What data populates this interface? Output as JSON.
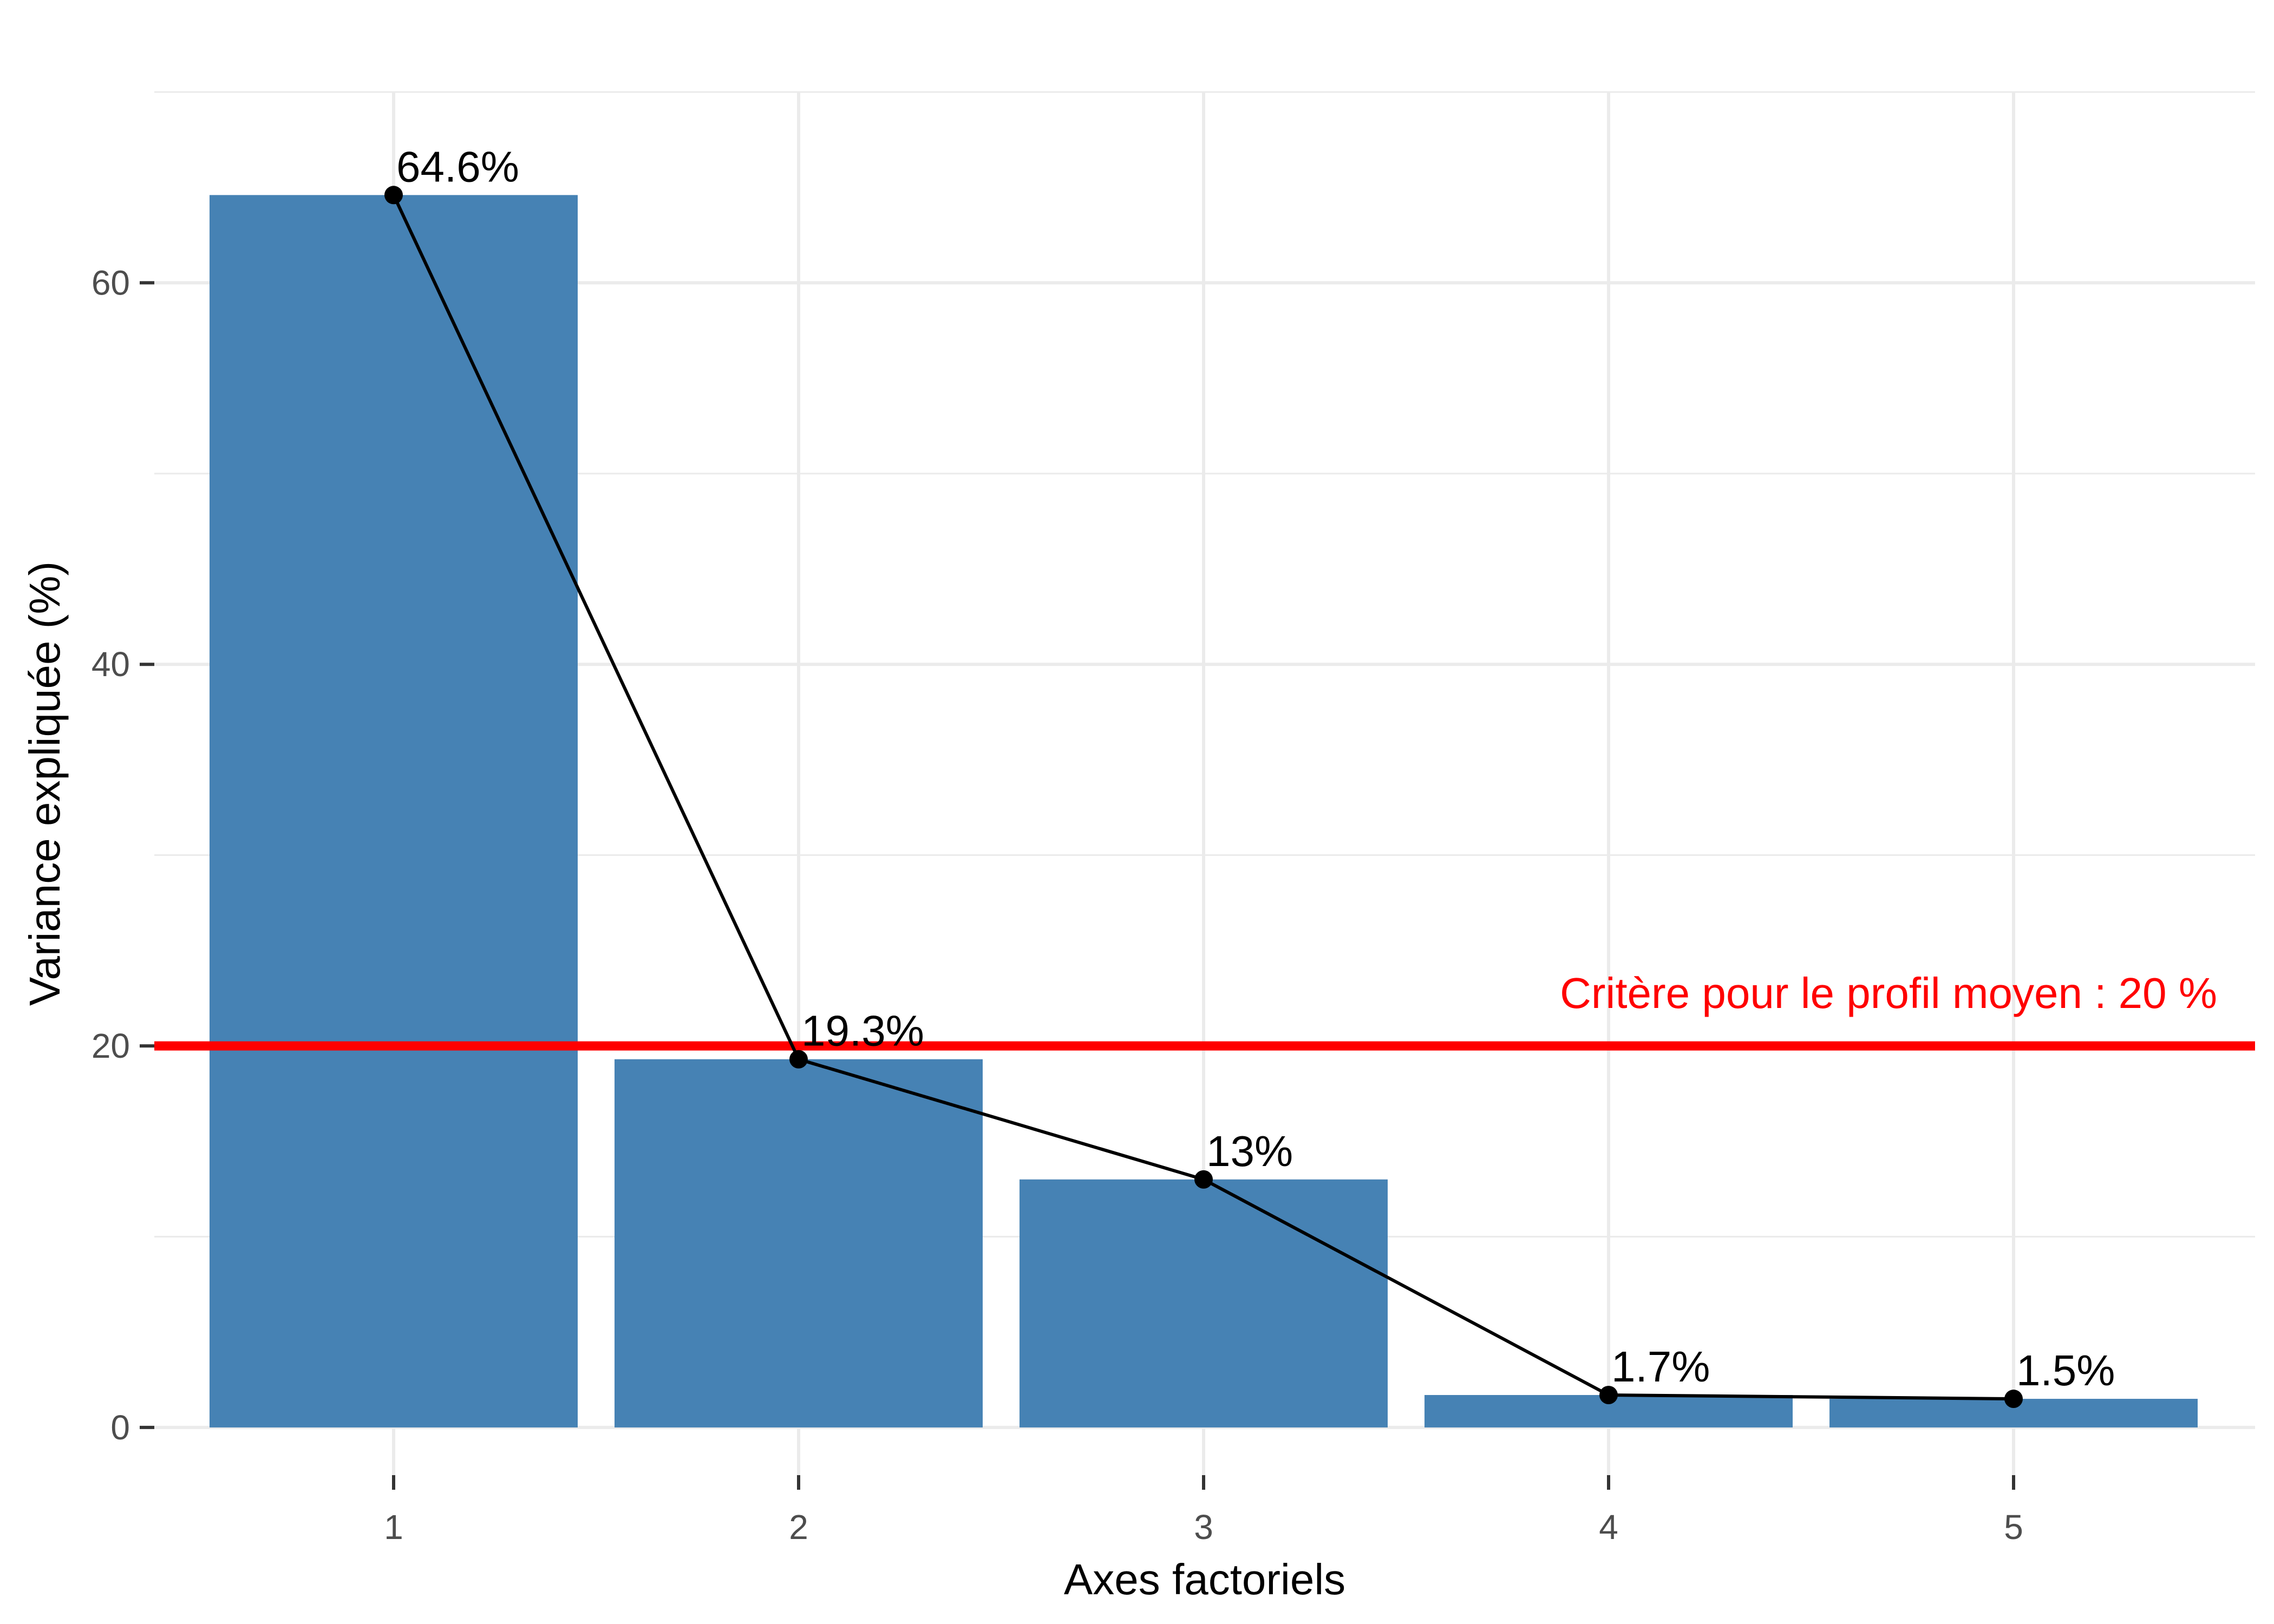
{
  "chart_data": {
    "type": "bar",
    "categories": [
      "1",
      "2",
      "3",
      "4",
      "5"
    ],
    "values": [
      64.6,
      19.3,
      13.0,
      1.7,
      1.5
    ],
    "data_labels": [
      "64.6%",
      "19.3%",
      "13%",
      "1.7%",
      "1.5%"
    ],
    "overlay_line": true,
    "xlabel": "Axes factoriels",
    "ylabel": "Variance expliquée (%)",
    "ylim": [
      -2.5,
      70
    ],
    "yticks": [
      0,
      20,
      40,
      60
    ],
    "yticks_minor": [
      10,
      30,
      50,
      70
    ],
    "grid": true,
    "bar_color": "#4682B4",
    "line_color": "#000000",
    "reference_line": {
      "value": 20,
      "label": "Critère pour le profil moyen : 20 %",
      "color": "#FF0000"
    }
  }
}
